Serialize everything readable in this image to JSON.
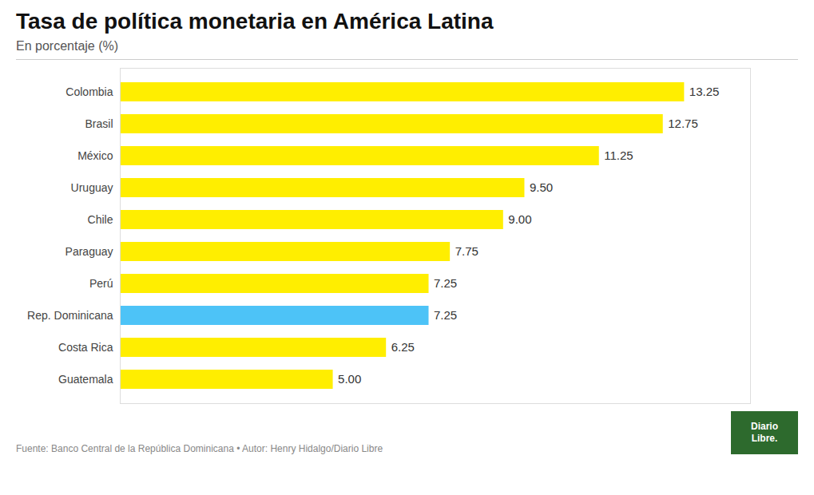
{
  "chart_data": {
    "type": "bar",
    "orientation": "horizontal",
    "title": "Tasa de política monetaria en América Latina",
    "subtitle": "En porcentaje (%)",
    "annotations": [
      "Fuente: Banco Central de la República Dominicana • Autor: Henry Hidalgo/Diario Libre",
      "Diario",
      "Libre."
    ],
    "categories": [
      "Colombia",
      "Brasil",
      "México",
      "Uruguay",
      "Chile",
      "Paraguay",
      "Perú",
      "Rep. Dominicana",
      "Costa Rica",
      "Guatemala"
    ],
    "values": [
      13.25,
      12.75,
      11.25,
      9.5,
      9.0,
      7.75,
      7.25,
      7.25,
      6.25,
      5.0
    ],
    "value_labels": [
      "13.25",
      "12.75",
      "11.25",
      "9.50",
      "9.00",
      "7.75",
      "7.25",
      "7.25",
      "6.25",
      "5.00"
    ],
    "colors": [
      "#FFEE00",
      "#FFEE00",
      "#FFEE00",
      "#FFEE00",
      "#FFEE00",
      "#FFEE00",
      "#FFEE00",
      "#4DC3F7",
      "#FFEE00",
      "#FFEE00"
    ],
    "xlim": [
      0,
      14.8
    ],
    "data_labels": true,
    "tick_labels": "y",
    "grid": false
  }
}
